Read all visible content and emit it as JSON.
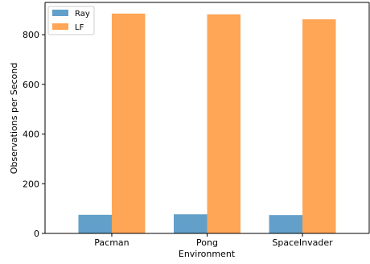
{
  "chart_data": {
    "type": "bar",
    "title": "",
    "xlabel": "Environment",
    "ylabel": "Observations per Second",
    "categories": [
      "Pacman",
      "Pong",
      "SpaceInvader"
    ],
    "series": [
      {
        "name": "Ray",
        "values": [
          75,
          77,
          74
        ],
        "color": "#1f77b4",
        "opacity": 0.7
      },
      {
        "name": "LF",
        "values": [
          885,
          882,
          862
        ],
        "color": "#ff7f0e",
        "opacity": 0.7
      }
    ],
    "ylim": [
      0,
      930
    ],
    "yticks": [
      0,
      200,
      400,
      600,
      800
    ],
    "grid": false,
    "legend_position": "top-left"
  }
}
